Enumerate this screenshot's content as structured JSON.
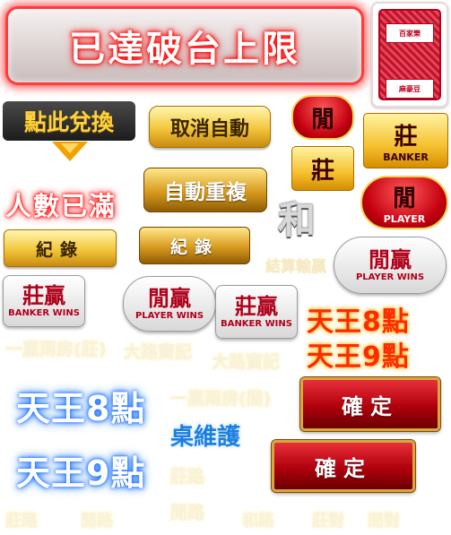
{
  "banner": {
    "text": "已達破台上限"
  },
  "card_back": {
    "top_label": "百家樂",
    "bottom_label": "麻豪豆"
  },
  "exchange": {
    "label": "點此兌換"
  },
  "full": {
    "text": "人數已滿"
  },
  "buttons": {
    "cancel_auto": "取消自動",
    "auto_repeat": "自動重複",
    "record_1": "紀錄",
    "record_2": "紀錄",
    "confirm_1": "確定",
    "confirm_2": "確定"
  },
  "bets": {
    "player_char": "閒",
    "banker_char": "莊",
    "banker_en": "BANKER",
    "player_en": "PLAYER",
    "tie": "和"
  },
  "results": {
    "player_wins_cn": "閒贏",
    "player_wins_en": "PLAYER WINS",
    "banker_wins_cn": "莊贏",
    "banker_wins_en": "BANKER WINS",
    "win_lose": "結算輸贏"
  },
  "faint_labels": [
    "一贏兩房(莊)",
    "大路寶記",
    "大路寶記",
    "一贏兩房(閒)",
    "莊路",
    "閒路",
    "莊路",
    "閒路",
    "和路",
    "莊對",
    "閒對"
  ],
  "naturals": {
    "red_8": "天王8點",
    "red_9": "天王9點",
    "blue_8": "天王8點",
    "blue_9": "天王9點"
  },
  "maintenance": {
    "text": "桌維護"
  }
}
